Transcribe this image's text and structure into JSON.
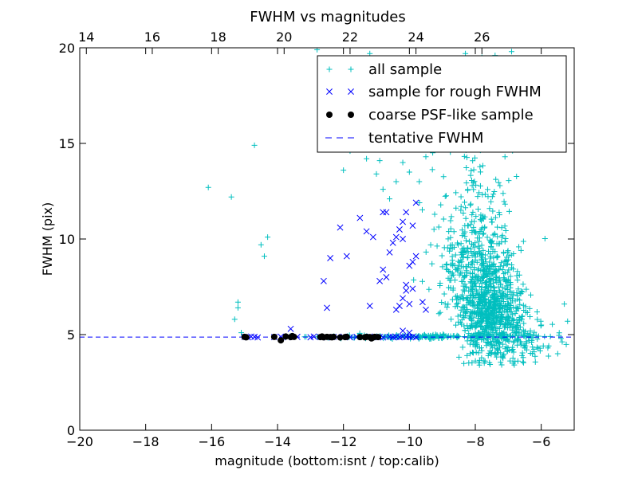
{
  "chart_data": {
    "type": "scatter",
    "title": "FWHM vs magnitudes",
    "xlabel": "magnitude (bottom:isnt / top:calib)",
    "ylabel": "FWHM (pix)",
    "xlim": [
      -20,
      -5
    ],
    "ylim": [
      0,
      20
    ],
    "x_ticks": [
      -20,
      -18,
      -16,
      -14,
      -12,
      -10,
      -8,
      -6
    ],
    "y_ticks": [
      0,
      5,
      10,
      15,
      20
    ],
    "top_axis": {
      "ticks": [
        14,
        16,
        18,
        20,
        22,
        24,
        26
      ],
      "offset": 33.8
    },
    "grid": false,
    "legend_position": "upper-right",
    "colors": {
      "all": "#00bfbf",
      "rough": "#0000ff",
      "psf": "#000000",
      "tentative": "#0000ff"
    },
    "tentative_fwhm": 4.87,
    "series": [
      {
        "name": "all sample",
        "marker": "plus",
        "dense_clouds": [
          {
            "center_x": -7.6,
            "center_y": 6.8,
            "spread_x": 0.45,
            "spread_y": 1.6,
            "count": 600
          },
          {
            "center_x": -7.3,
            "center_y": 5.6,
            "spread_x": 0.55,
            "spread_y": 0.8,
            "count": 250
          },
          {
            "center_x": -8.3,
            "center_y": 9.0,
            "spread_x": 0.5,
            "spread_y": 1.5,
            "count": 180
          },
          {
            "center_x": -8.0,
            "center_y": 12.5,
            "spread_x": 0.6,
            "spread_y": 2.5,
            "count": 120
          },
          {
            "center_x": -9.6,
            "center_y": 4.9,
            "spread_x": 1.5,
            "spread_y": 0.05,
            "count": 150
          },
          {
            "center_x": -6.6,
            "center_y": 4.6,
            "spread_x": 0.6,
            "spread_y": 0.6,
            "count": 80
          }
        ],
        "points": [
          [
            -16.1,
            12.7
          ],
          [
            -15.4,
            12.2
          ],
          [
            -15.2,
            6.7
          ],
          [
            -15.2,
            6.4
          ],
          [
            -15.3,
            5.8
          ],
          [
            -15.1,
            5.1
          ],
          [
            -14.7,
            14.9
          ],
          [
            -14.5,
            9.7
          ],
          [
            -14.3,
            10.1
          ],
          [
            -14.4,
            9.1
          ],
          [
            -12.0,
            13.6
          ],
          [
            -11.8,
            14.6
          ],
          [
            -11.3,
            14.2
          ],
          [
            -11.0,
            13.4
          ],
          [
            -10.8,
            12.6
          ],
          [
            -10.6,
            12.1
          ],
          [
            -10.4,
            13.0
          ],
          [
            -10.2,
            14.0
          ],
          [
            -10.0,
            13.5
          ],
          [
            -9.7,
            13.0
          ],
          [
            -9.5,
            14.3
          ],
          [
            -9.3,
            14.8
          ],
          [
            -9.0,
            15.1
          ],
          [
            -8.8,
            15.6
          ],
          [
            -10.9,
            14.1
          ],
          [
            -10.7,
            17.3
          ],
          [
            -12.8,
            19.9
          ],
          [
            -11.2,
            19.7
          ],
          [
            -8.3,
            19.7
          ],
          [
            -7.8,
            19.5
          ],
          [
            -7.4,
            19.6
          ],
          [
            -6.9,
            19.8
          ],
          [
            -7.1,
            14.3
          ],
          [
            -7.0,
            15.4
          ],
          [
            -6.6,
            16.8
          ],
          [
            -8.0,
            16.2
          ],
          [
            -5.3,
            6.6
          ],
          [
            -5.4,
            4.8
          ],
          [
            -5.2,
            5.7
          ],
          [
            -5.5,
            4.0
          ],
          [
            -5.8,
            4.3
          ],
          [
            -6.0,
            5.5
          ],
          [
            -5.9,
            4.9
          ]
        ]
      },
      {
        "name": "sample for rough FWHM",
        "marker": "x",
        "points": [
          [
            -15.0,
            4.88
          ],
          [
            -14.9,
            4.86
          ],
          [
            -14.8,
            4.9
          ],
          [
            -14.7,
            4.88
          ],
          [
            -14.6,
            4.85
          ],
          [
            -14.1,
            4.87
          ],
          [
            -13.9,
            4.89
          ],
          [
            -13.7,
            4.86
          ],
          [
            -13.6,
            5.3
          ],
          [
            -13.4,
            4.88
          ],
          [
            -13.0,
            4.86
          ],
          [
            -12.9,
            4.9
          ],
          [
            -12.7,
            4.87
          ],
          [
            -12.5,
            4.85
          ],
          [
            -12.3,
            4.88
          ],
          [
            -12.2,
            4.87
          ],
          [
            -12.0,
            4.89
          ],
          [
            -11.8,
            4.86
          ],
          [
            -11.6,
            4.88
          ],
          [
            -11.4,
            4.87
          ],
          [
            -11.2,
            4.9
          ],
          [
            -11.1,
            4.86
          ],
          [
            -10.9,
            4.88
          ],
          [
            -10.8,
            4.85
          ],
          [
            -10.6,
            4.89
          ],
          [
            -10.5,
            4.87
          ],
          [
            -10.4,
            4.88
          ],
          [
            -10.3,
            4.86
          ],
          [
            -10.2,
            4.9
          ],
          [
            -10.1,
            4.87
          ],
          [
            -10.0,
            4.88
          ],
          [
            -9.9,
            4.89
          ],
          [
            -9.8,
            4.86
          ],
          [
            -12.6,
            7.8
          ],
          [
            -12.5,
            6.4
          ],
          [
            -12.4,
            9.0
          ],
          [
            -12.1,
            10.6
          ],
          [
            -11.9,
            9.1
          ],
          [
            -11.5,
            11.1
          ],
          [
            -11.3,
            10.4
          ],
          [
            -11.1,
            10.1
          ],
          [
            -10.8,
            11.4
          ],
          [
            -10.7,
            11.4
          ],
          [
            -11.2,
            6.5
          ],
          [
            -10.9,
            7.8
          ],
          [
            -10.8,
            8.4
          ],
          [
            -10.6,
            9.3
          ],
          [
            -10.5,
            9.8
          ],
          [
            -10.4,
            10.1
          ],
          [
            -10.3,
            10.5
          ],
          [
            -10.2,
            10.9
          ],
          [
            -10.1,
            11.4
          ],
          [
            -10.4,
            6.3
          ],
          [
            -10.2,
            6.9
          ],
          [
            -10.1,
            7.6
          ],
          [
            -10.0,
            8.6
          ],
          [
            -9.9,
            8.8
          ],
          [
            -9.8,
            9.1
          ],
          [
            -9.9,
            7.4
          ],
          [
            -9.6,
            6.7
          ],
          [
            -9.5,
            6.3
          ],
          [
            -10.7,
            8.0
          ],
          [
            -10.3,
            6.5
          ],
          [
            -10.2,
            5.2
          ],
          [
            -10.0,
            5.1
          ],
          [
            -9.8,
            11.9
          ],
          [
            -9.9,
            10.7
          ],
          [
            -10.2,
            10.0
          ],
          [
            -10.0,
            6.6
          ],
          [
            -10.1,
            7.3
          ]
        ]
      },
      {
        "name": "coarse PSF-like sample",
        "marker": "dot",
        "points": [
          [
            -15.0,
            4.88
          ],
          [
            -14.95,
            4.86
          ],
          [
            -14.1,
            4.88
          ],
          [
            -13.9,
            4.7
          ],
          [
            -13.75,
            4.9
          ],
          [
            -13.6,
            4.87
          ],
          [
            -13.5,
            4.88
          ],
          [
            -12.7,
            4.87
          ],
          [
            -12.6,
            4.86
          ],
          [
            -12.5,
            4.88
          ],
          [
            -12.4,
            4.87
          ],
          [
            -12.35,
            4.86
          ],
          [
            -12.3,
            4.88
          ],
          [
            -12.1,
            4.85
          ],
          [
            -11.95,
            4.87
          ],
          [
            -11.9,
            4.88
          ],
          [
            -11.5,
            4.87
          ],
          [
            -11.35,
            4.86
          ],
          [
            -11.3,
            4.88
          ],
          [
            -11.2,
            4.87
          ],
          [
            -11.15,
            4.8
          ],
          [
            -11.1,
            4.85
          ],
          [
            -11.05,
            4.88
          ],
          [
            -10.95,
            4.87
          ],
          [
            -12.65,
            4.9
          ],
          [
            -13.55,
            4.92
          ]
        ]
      },
      {
        "name": "tentative FWHM",
        "marker": "dashed-line",
        "points": [
          [
            -20,
            4.87
          ],
          [
            -5,
            4.87
          ]
        ]
      }
    ]
  }
}
